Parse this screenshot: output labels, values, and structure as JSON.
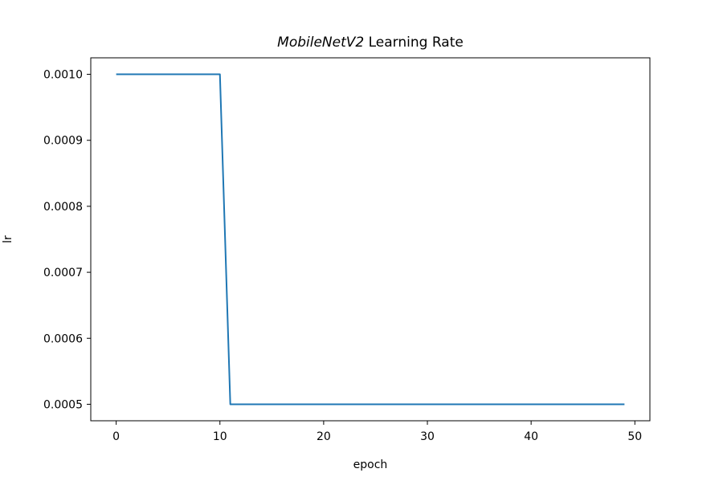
{
  "chart_data": {
    "type": "line",
    "title": "MobileNetV2 Learning Rate",
    "title_italic_part": "MobileNetV2",
    "title_rest": " Learning Rate",
    "xlabel": "epoch",
    "ylabel": "lr",
    "xlim": [
      -2.45,
      51.45
    ],
    "ylim": [
      0.000475,
      0.001025
    ],
    "xticks": [
      0,
      10,
      20,
      30,
      40,
      50
    ],
    "xtick_labels": [
      "0",
      "10",
      "20",
      "30",
      "40",
      "50"
    ],
    "yticks": [
      0.0005,
      0.0006,
      0.0007,
      0.0008,
      0.0009,
      0.001
    ],
    "ytick_labels": [
      "0.0005",
      "0.0006",
      "0.0007",
      "0.0008",
      "0.0009",
      "0.0010"
    ],
    "grid": false,
    "series": [
      {
        "color": "#1f77b4",
        "x": [
          0,
          1,
          2,
          3,
          4,
          5,
          6,
          7,
          8,
          9,
          10,
          11,
          12,
          13,
          14,
          15,
          16,
          17,
          18,
          19,
          20,
          21,
          22,
          23,
          24,
          25,
          26,
          27,
          28,
          29,
          30,
          31,
          32,
          33,
          34,
          35,
          36,
          37,
          38,
          39,
          40,
          41,
          42,
          43,
          44,
          45,
          46,
          47,
          48,
          49
        ],
        "y": [
          0.001,
          0.001,
          0.001,
          0.001,
          0.001,
          0.001,
          0.001,
          0.001,
          0.001,
          0.001,
          0.001,
          0.0005,
          0.0005,
          0.0005,
          0.0005,
          0.0005,
          0.0005,
          0.0005,
          0.0005,
          0.0005,
          0.0005,
          0.0005,
          0.0005,
          0.0005,
          0.0005,
          0.0005,
          0.0005,
          0.0005,
          0.0005,
          0.0005,
          0.0005,
          0.0005,
          0.0005,
          0.0005,
          0.0005,
          0.0005,
          0.0005,
          0.0005,
          0.0005,
          0.0005,
          0.0005,
          0.0005,
          0.0005,
          0.0005,
          0.0005,
          0.0005,
          0.0005,
          0.0005,
          0.0005,
          0.0005
        ]
      }
    ]
  }
}
